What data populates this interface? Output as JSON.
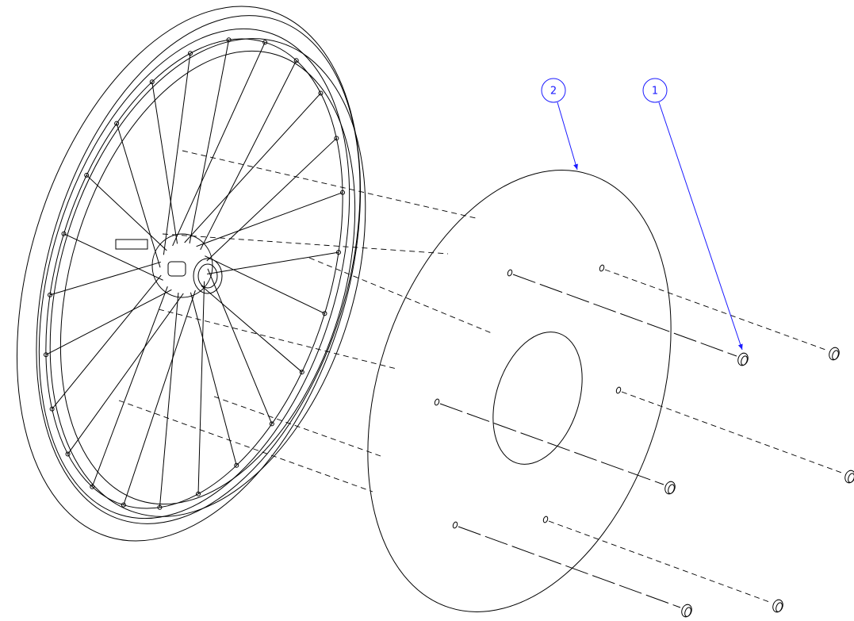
{
  "balloons": [
    {
      "label": "2"
    },
    {
      "label": "1"
    }
  ]
}
